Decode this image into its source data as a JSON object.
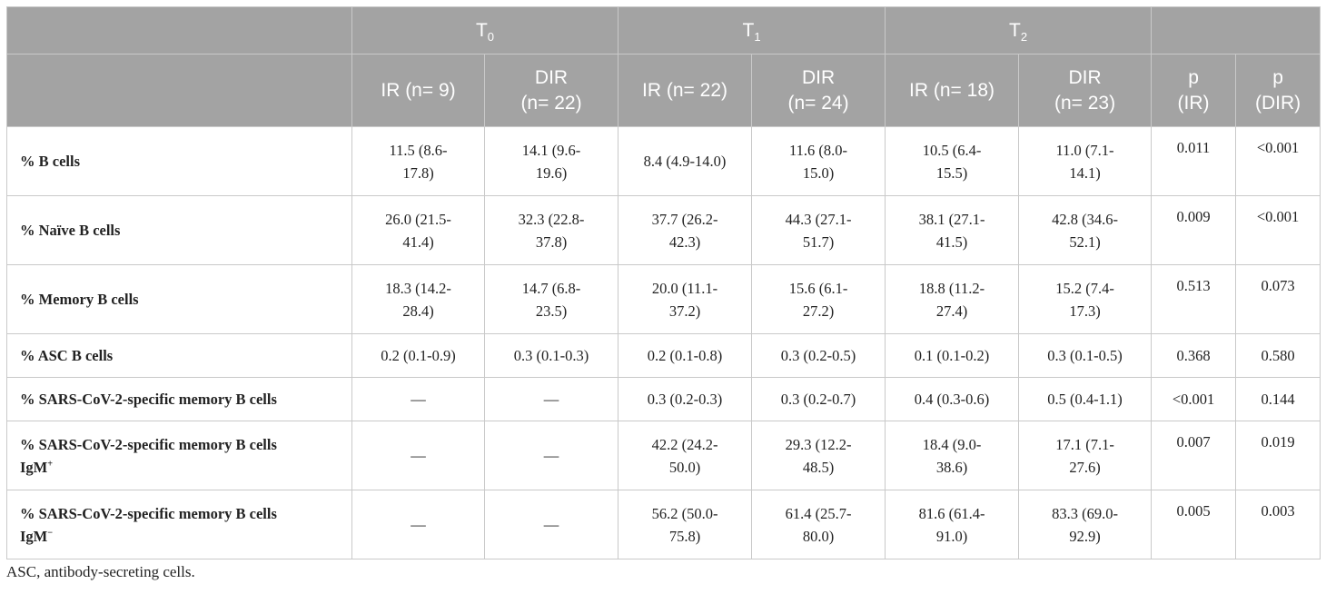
{
  "header": {
    "groups": [
      {
        "label": "T",
        "sub": "0"
      },
      {
        "label": "T",
        "sub": "1"
      },
      {
        "label": "T",
        "sub": "2"
      }
    ],
    "subheaders": [
      {
        "l1": "",
        "l2": "IR (n= 9)"
      },
      {
        "l1": "DIR",
        "l2": "(n= 22)"
      },
      {
        "l1": "",
        "l2": "IR (n= 22)"
      },
      {
        "l1": "DIR",
        "l2": "(n= 24)"
      },
      {
        "l1": "",
        "l2": "IR (n= 18)"
      },
      {
        "l1": "DIR",
        "l2": "(n= 23)"
      },
      {
        "l1": "p",
        "l2": "(IR)"
      },
      {
        "l1": "p",
        "l2": "(DIR)"
      }
    ]
  },
  "rows": [
    {
      "label": "% B cells",
      "sup": "",
      "cells": [
        [
          "11.5 (8.6-",
          "17.8)"
        ],
        [
          "14.1 (9.6-",
          "19.6)"
        ],
        [
          "8.4 (4.9-14.0)"
        ],
        [
          "11.6 (8.0-",
          "15.0)"
        ],
        [
          "10.5 (6.4-",
          "15.5)"
        ],
        [
          "11.0 (7.1-",
          "14.1)"
        ],
        [
          "0.011"
        ],
        [
          "<0.001"
        ]
      ]
    },
    {
      "label": "% Naïve B cells",
      "sup": "",
      "cells": [
        [
          "26.0 (21.5-",
          "41.4)"
        ],
        [
          "32.3 (22.8-",
          "37.8)"
        ],
        [
          "37.7 (26.2-",
          "42.3)"
        ],
        [
          "44.3 (27.1-",
          "51.7)"
        ],
        [
          "38.1 (27.1-",
          "41.5)"
        ],
        [
          "42.8 (34.6-",
          "52.1)"
        ],
        [
          "0.009"
        ],
        [
          "<0.001"
        ]
      ]
    },
    {
      "label": "% Memory B cells",
      "sup": "",
      "cells": [
        [
          "18.3 (14.2-",
          "28.4)"
        ],
        [
          "14.7 (6.8-",
          "23.5)"
        ],
        [
          "20.0 (11.1-",
          "37.2)"
        ],
        [
          "15.6 (6.1-",
          "27.2)"
        ],
        [
          "18.8 (11.2-",
          "27.4)"
        ],
        [
          "15.2 (7.4-",
          "17.3)"
        ],
        [
          "0.513"
        ],
        [
          "0.073"
        ]
      ]
    },
    {
      "label": "% ASC B cells",
      "sup": "",
      "cells": [
        [
          "0.2 (0.1-0.9)"
        ],
        [
          "0.3 (0.1-0.3)"
        ],
        [
          "0.2 (0.1-0.8)"
        ],
        [
          "0.3 (0.2-0.5)"
        ],
        [
          "0.1 (0.1-0.2)"
        ],
        [
          "0.3 (0.1-0.5)"
        ],
        [
          "0.368"
        ],
        [
          "0.580"
        ]
      ]
    },
    {
      "label": "% SARS-CoV-2-specific memory B cells",
      "sup": "",
      "cells": [
        [
          "—"
        ],
        [
          "—"
        ],
        [
          "0.3 (0.2-0.3)"
        ],
        [
          "0.3 (0.2-0.7)"
        ],
        [
          "0.4 (0.3-0.6)"
        ],
        [
          "0.5 (0.4-1.1)"
        ],
        [
          "<0.001"
        ],
        [
          "0.144"
        ]
      ]
    },
    {
      "label": "% SARS-CoV-2-specific memory B cells",
      "label2": "IgM",
      "sup": "+",
      "cells": [
        [
          "—"
        ],
        [
          "—"
        ],
        [
          "42.2 (24.2-",
          "50.0)"
        ],
        [
          "29.3 (12.2-",
          "48.5)"
        ],
        [
          "18.4 (9.0-",
          "38.6)"
        ],
        [
          "17.1 (7.1-",
          "27.6)"
        ],
        [
          "0.007"
        ],
        [
          "0.019"
        ]
      ]
    },
    {
      "label": "% SARS-CoV-2-specific memory B cells",
      "label2": "IgM",
      "sup": "−",
      "cells": [
        [
          "—"
        ],
        [
          "—"
        ],
        [
          "56.2 (50.0-",
          "75.8)"
        ],
        [
          "61.4 (25.7-",
          "80.0)"
        ],
        [
          "81.6 (61.4-",
          "91.0)"
        ],
        [
          "83.3 (69.0-",
          "92.9)"
        ],
        [
          "0.005"
        ],
        [
          "0.003"
        ]
      ]
    }
  ],
  "footnote": "ASC, antibody-secreting cells."
}
